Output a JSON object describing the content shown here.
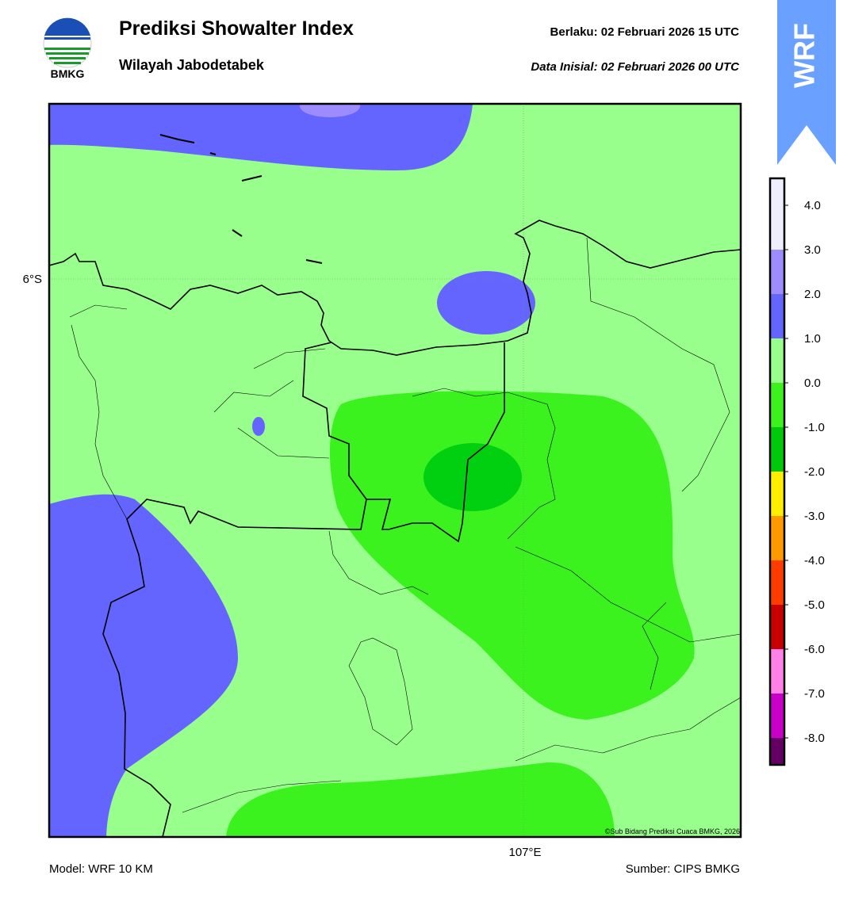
{
  "header": {
    "title": "Prediksi Showalter Index",
    "subtitle": "Wilayah Jabodetabek",
    "valid_label": "Berlaku:  02 Februari 2026 15 UTC",
    "initial_label": "Data Inisial:  02 Februari 2026 00 UTC",
    "logo_text": "BMKG",
    "badge": "WRF"
  },
  "map": {
    "lat_label": "6°S",
    "lon_label": "107°E",
    "copyright": "©Sub Bidang Prediksi Cuaca BMKG, 2026"
  },
  "colorbar": {
    "labels": [
      "4.0",
      "3.0",
      "2.0",
      "1.0",
      "0.0",
      "-1.0",
      "-2.0",
      "-3.0",
      "-4.0",
      "-5.0",
      "-6.0",
      "-7.0",
      "-8.0"
    ],
    "colors": [
      "#eeeeff",
      "#9c8cff",
      "#6464ff",
      "#99ff8c",
      "#3cf21e",
      "#00c80a",
      "#ffee00",
      "#ff9900",
      "#ff3c00",
      "#c80000",
      "#ff80e6",
      "#c800c8",
      "#640064"
    ]
  },
  "footer": {
    "model": "Model: WRF 10 KM",
    "source": "Sumber: CIPS BMKG"
  }
}
